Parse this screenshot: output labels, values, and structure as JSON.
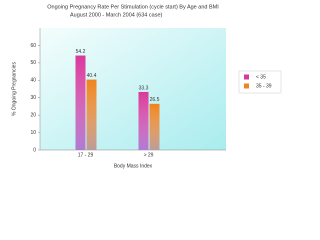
{
  "chart_data": {
    "type": "bar",
    "title": "Ongoing Pregnancy Rate Per Stimulation (cycle start) By Age and BMI",
    "subtitle": "August 2000 - March 2004 (634 case)",
    "x_label": "Body Mass Index",
    "y_label": "% Ongoing Pregnancies",
    "categories": [
      "17 - 29",
      "> 29"
    ],
    "series": [
      {
        "name": "< 35",
        "color": "#d8399c",
        "values": [
          54.2,
          33.3
        ]
      },
      {
        "name": "35 - 39",
        "color": "#ee8420",
        "values": [
          40.4,
          26.5
        ]
      }
    ],
    "ylim": [
      0,
      70
    ],
    "yticks": [
      0,
      10,
      20,
      30,
      40,
      50,
      60
    ]
  }
}
